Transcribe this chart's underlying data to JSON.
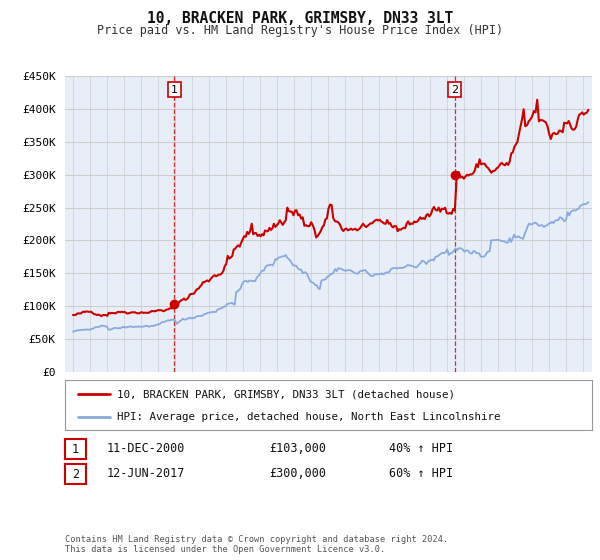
{
  "title": "10, BRACKEN PARK, GRIMSBY, DN33 3LT",
  "subtitle": "Price paid vs. HM Land Registry's House Price Index (HPI)",
  "ylim": [
    0,
    450000
  ],
  "xlim_start": 1994.5,
  "xlim_end": 2025.5,
  "yticks": [
    0,
    50000,
    100000,
    150000,
    200000,
    250000,
    300000,
    350000,
    400000,
    450000
  ],
  "ytick_labels": [
    "£0",
    "£50K",
    "£100K",
    "£150K",
    "£200K",
    "£250K",
    "£300K",
    "£350K",
    "£400K",
    "£450K"
  ],
  "xticks": [
    1995,
    1996,
    1997,
    1998,
    1999,
    2000,
    2001,
    2002,
    2003,
    2004,
    2005,
    2006,
    2007,
    2008,
    2009,
    2010,
    2011,
    2012,
    2013,
    2014,
    2015,
    2016,
    2017,
    2018,
    2019,
    2020,
    2021,
    2022,
    2023,
    2024,
    2025
  ],
  "sale1_x": 2000.95,
  "sale1_y": 103000,
  "sale2_x": 2017.45,
  "sale2_y": 300000,
  "red_line_color": "#cc0000",
  "blue_line_color": "#88aadd",
  "marker_color": "#cc0000",
  "vline_color": "#cc0000",
  "grid_color": "#cccccc",
  "bg_color": "#e8eef8",
  "legend_label_red": "10, BRACKEN PARK, GRIMSBY, DN33 3LT (detached house)",
  "legend_label_blue": "HPI: Average price, detached house, North East Lincolnshire",
  "annot1_date": "11-DEC-2000",
  "annot1_price": "£103,000",
  "annot1_hpi": "40% ↑ HPI",
  "annot2_date": "12-JUN-2017",
  "annot2_price": "£300,000",
  "annot2_hpi": "60% ↑ HPI",
  "footnote": "Contains HM Land Registry data © Crown copyright and database right 2024.\nThis data is licensed under the Open Government Licence v3.0."
}
